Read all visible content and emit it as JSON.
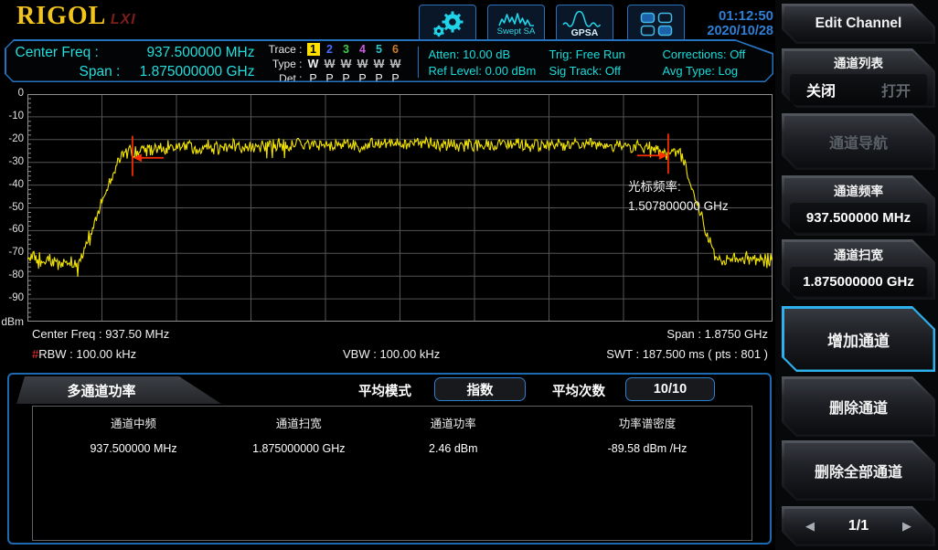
{
  "colors": {
    "accent_cyan": "#25dede",
    "accent_blue": "#2e7fd6",
    "trace_yellow": "#f2e400",
    "marker_red": "#ff2d00",
    "selected_softkey_border": "#2cb1ec",
    "trace_numbers": [
      "#ffe000",
      "#4a6cff",
      "#3ecb44",
      "#c95ae0",
      "#2fc6c6",
      "#cd7d2e"
    ]
  },
  "brand": {
    "logo": "RIGOL",
    "lxi": "LXI"
  },
  "header": {
    "center_freq_label": "Center Freq :",
    "center_freq_value": "937.500000 MHz",
    "span_label": "Span :",
    "span_value": "1.875000000 GHz",
    "trace": {
      "label": "Trace :",
      "numbers": [
        "1",
        "2",
        "3",
        "4",
        "5",
        "6"
      ],
      "type_label": "Type :",
      "types": [
        "W",
        "W",
        "W",
        "W",
        "W",
        "W"
      ],
      "det_label": "Det :",
      "dets": [
        "P",
        "P",
        "P",
        "P",
        "P",
        "P"
      ]
    },
    "status": [
      [
        "Atten: 10.00 dB",
        "Ref Level: 0.00 dBm"
      ],
      [
        "Trig: Free Run",
        "Sig Track: Off"
      ],
      [
        "Corrections: Off",
        "Avg Type: Log"
      ]
    ],
    "app_buttons": {
      "swept_sa": "Swept SA",
      "gpsa": "GPSA"
    },
    "time": "01:12:50",
    "date": "2020/10/28"
  },
  "chart": {
    "y_unit": "dBm",
    "footer": {
      "center_freq": "Center Freq : 937.50 MHz",
      "rbw_hash": "#",
      "rbw": "RBW : 100.00 kHz",
      "vbw": "VBW : 100.00 kHz",
      "span": "Span : 1.8750 GHz",
      "swt": "SWT : 187.500 ms ( pts : 801 )"
    }
  },
  "chart_data": {
    "type": "line",
    "x_range": {
      "start_hz": 0,
      "stop_hz": 1875000000
    },
    "y_axis": {
      "ticks": [
        "0",
        "-10",
        "-20",
        "-30",
        "-40",
        "-50",
        "-60",
        "-70",
        "-80",
        "-90"
      ],
      "unit": "dBm",
      "top_dbm": 0,
      "bottom_dbm": -100
    },
    "trace_color": "#f2e400",
    "points": 801,
    "noise_db": 3.6,
    "envelope": [
      {
        "f": 0.0,
        "dbm": -72
      },
      {
        "f": 0.04,
        "dbm": -74
      },
      {
        "f": 0.07,
        "dbm": -74
      },
      {
        "f": 0.1,
        "dbm": -48
      },
      {
        "f": 0.126,
        "dbm": -26
      },
      {
        "f": 0.2,
        "dbm": -23
      },
      {
        "f": 0.5,
        "dbm": -22
      },
      {
        "f": 0.8,
        "dbm": -22.5
      },
      {
        "f": 0.877,
        "dbm": -26
      },
      {
        "f": 0.9,
        "dbm": -50
      },
      {
        "f": 0.924,
        "dbm": -72
      },
      {
        "f": 1.0,
        "dbm": -73
      }
    ],
    "markers": [
      {
        "x_frac": 0.141,
        "y_dbm": -28,
        "side": "left"
      },
      {
        "x_frac": 0.86,
        "y_dbm": -27,
        "side": "right"
      }
    ],
    "marker_color": "#ff2d00",
    "cursor_label": "光标频率:",
    "cursor_value": "1.507800000 GHz"
  },
  "bottom_panel": {
    "tab": "多通道功率",
    "avg_mode_label": "平均模式",
    "avg_mode_value": "指数",
    "avg_count_label": "平均次数",
    "avg_count_value": "10/10",
    "table": {
      "headers": [
        "通道中频",
        "通道扫宽",
        "通道功率",
        "功率谱密度"
      ],
      "rows": [
        [
          "937.500000 MHz",
          "1.875000000 GHz",
          "2.46 dBm",
          "-89.58 dBm /Hz"
        ]
      ]
    }
  },
  "sidebar": {
    "edit_channel": "Edit Channel",
    "channel_list": {
      "title": "通道列表",
      "off": "关闭",
      "on": "打开"
    },
    "channel_nav": "通道导航",
    "channel_freq": {
      "title": "通道频率",
      "value": "937.500000 MHz"
    },
    "channel_span": {
      "title": "通道扫宽",
      "value": "1.875000000 GHz"
    },
    "add_channel": "增加通道",
    "delete_channel": "删除通道",
    "delete_all": "删除全部通道",
    "page": "1/1"
  }
}
